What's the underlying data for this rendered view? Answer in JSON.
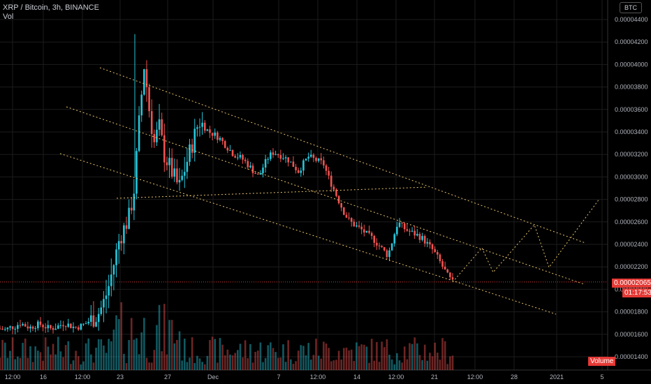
{
  "header": {
    "symbol_line": "XRP / Bitcoin, 3h, BINANCE",
    "vol_label": "Vol"
  },
  "currency_button": "BTC",
  "price_tag": {
    "value": "0.00002065",
    "countdown": "01:17:53",
    "bg": "#e53935"
  },
  "volume_tag": {
    "label": "Volume",
    "bg": "#e53935"
  },
  "colors": {
    "up": "#26c6da",
    "down": "#ef5350",
    "trend": "#e8c36a",
    "grid": "#1c1c1c"
  },
  "chart_data": {
    "type": "candlestick",
    "title": "XRP / Bitcoin, 3h, BINANCE",
    "yticks": [
      "0.00001400",
      "0.00001600",
      "0.00001800",
      "0.00002000",
      "0.00002200",
      "0.00002400",
      "0.00002600",
      "0.00002800",
      "0.00003000",
      "0.00003200",
      "0.00003400",
      "0.00003600",
      "0.00003800",
      "0.00004000",
      "0.00004200",
      "0.00004400"
    ],
    "ytick_values": [
      1.4e-05,
      1.6e-05,
      1.8e-05,
      2e-05,
      2.2e-05,
      2.4e-05,
      2.6e-05,
      2.8e-05,
      3e-05,
      3.2e-05,
      3.4e-05,
      3.6e-05,
      3.8e-05,
      4e-05,
      4.2e-05,
      4.4e-05
    ],
    "ylim": [
      1.35e-05,
      4.47e-05
    ],
    "xticks": [
      "12:00",
      "16",
      "12:00",
      "23",
      "27",
      "Dec",
      "7",
      "12:00",
      "14",
      "12:00",
      "21",
      "12:00",
      "28",
      "2021",
      "5"
    ],
    "price_close_approx": [
      1.65e-05,
      1.64e-05,
      1.66e-05,
      1.67e-05,
      1.7e-05,
      1.68e-05,
      1.66e-05,
      1.68e-05,
      1.69e-05,
      1.67e-05,
      1.65e-05,
      1.66e-05,
      1.68e-05,
      1.7e-05,
      1.68e-05,
      1.66e-05,
      1.67e-05,
      1.69e-05,
      1.72e-05,
      1.75e-05,
      1.8e-05,
      1.9e-05,
      2.05e-05,
      2.25e-05,
      2.45e-05,
      2.55e-05,
      2.65e-05,
      2.9e-05,
      3.5e-05,
      4e-05,
      3.6e-05,
      3.3e-05,
      3.45e-05,
      3.2e-05,
      3.1e-05,
      3e-05,
      2.9e-05,
      3.05e-05,
      3.2e-05,
      3.35e-05,
      3.5e-05,
      3.45e-05,
      3.4e-05,
      3.38e-05,
      3.35e-05,
      3.3e-05,
      3.25e-05,
      3.2e-05,
      3.18e-05,
      3.15e-05,
      3.1e-05,
      3.05e-05,
      3e-05,
      3.1e-05,
      3.18e-05,
      3.22e-05,
      3.2e-05,
      3.18e-05,
      3.15e-05,
      3.1e-05,
      3.05e-05,
      3.12e-05,
      3.18e-05,
      3.16e-05,
      3.14e-05,
      3.12e-05,
      3e-05,
      2.9e-05,
      2.8e-05,
      2.7e-05,
      2.62e-05,
      2.58e-05,
      2.55e-05,
      2.52e-05,
      2.48e-05,
      2.45e-05,
      2.4e-05,
      2.35e-05,
      2.3e-05,
      2.45e-05,
      2.6e-05,
      2.55e-05,
      2.52e-05,
      2.5e-05,
      2.48e-05,
      2.45e-05,
      2.4e-05,
      2.35e-05,
      2.28e-05,
      2.2e-05,
      2.12e-05,
      2.06e-05
    ],
    "legend": "none",
    "grid": true
  }
}
